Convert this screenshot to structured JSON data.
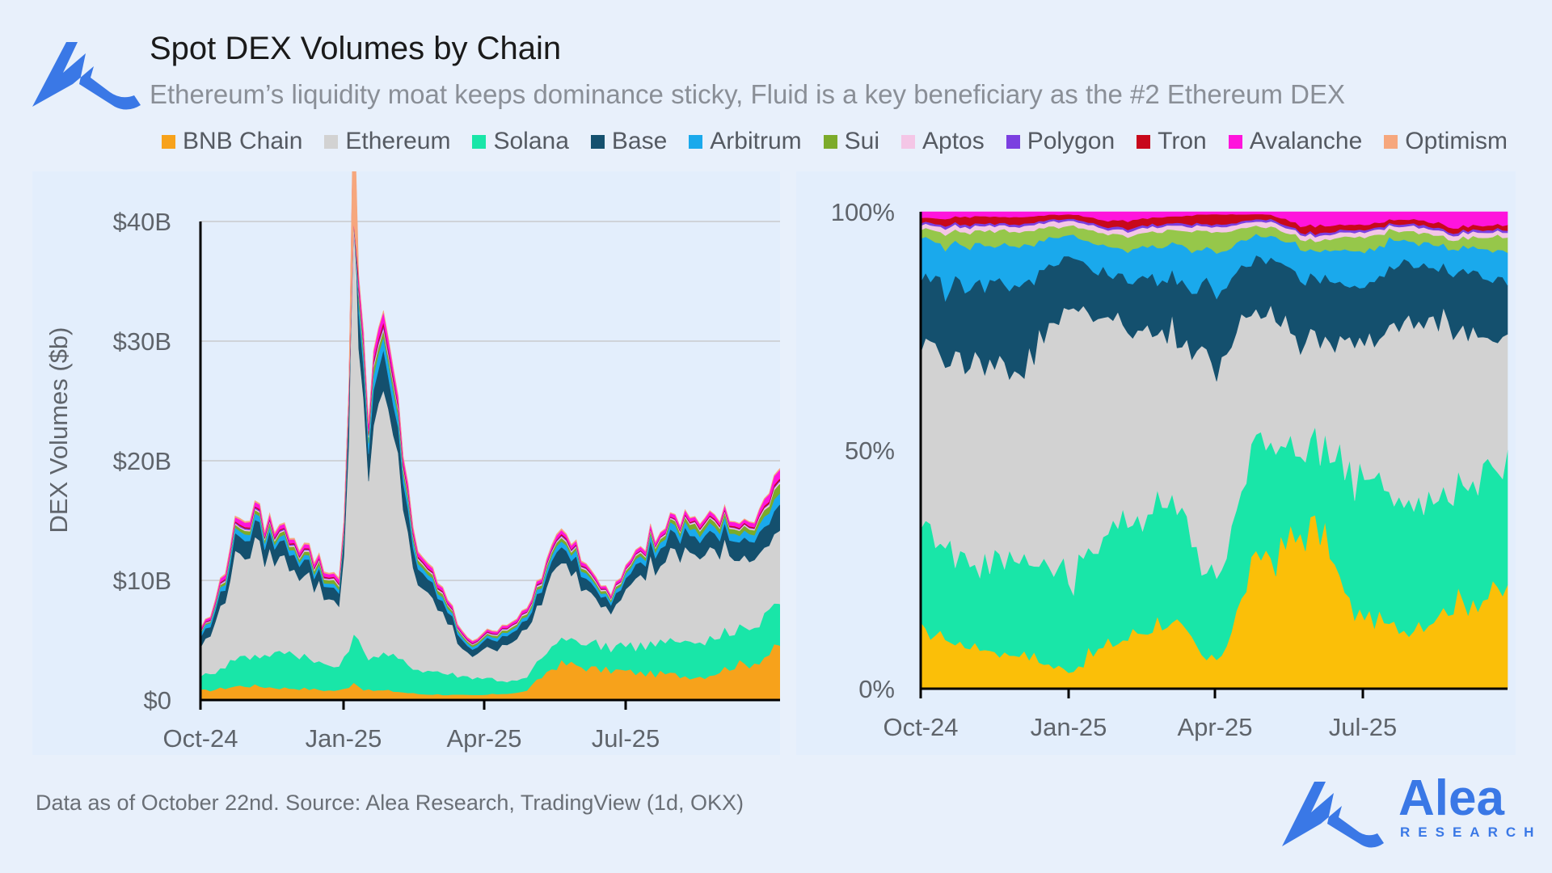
{
  "header": {
    "title": "Spot DEX Volumes by Chain",
    "subtitle": "Ethereum’s liquidity moat keeps dominance sticky, Fluid is a key beneficiary as the #2 Ethereum DEX"
  },
  "footer": {
    "source": "Data as of October 22nd. Source: Alea Research, TradingView (1d, OKX)",
    "brand_name": "Alea",
    "brand_sub": "RESEARCH"
  },
  "colors": {
    "background": "#e8f0fb",
    "brand": "#3a78e6"
  },
  "chart_data": [
    {
      "type": "area",
      "stacked": true,
      "ylabel": "DEX Volumes ($b)",
      "ylim": [
        0,
        40
      ],
      "yticks": [
        "$0",
        "$10B",
        "$20B",
        "$30B",
        "$40B"
      ],
      "xticks": [
        "Oct-24",
        "Jan-25",
        "Apr-25",
        "Jul-25"
      ],
      "grid": true,
      "legend": "top",
      "x": [
        "Oct-24",
        "Nov-24",
        "Dec-24",
        "Jan-25",
        "Jan-25b",
        "Feb-25",
        "Mar-25",
        "Apr-25",
        "May-25",
        "Jun-25",
        "Jul-25",
        "Aug-25",
        "Sep-25",
        "Oct-25"
      ],
      "series": [
        {
          "name": "BNB Chain",
          "color": "#f7a21b",
          "values": [
            0.8,
            1.2,
            1.0,
            0.8,
            0.8,
            0.5,
            0.4,
            0.6,
            3.0,
            2.5,
            2.2,
            2.0,
            3.0,
            4.5
          ]
        },
        {
          "name": "Solana",
          "color": "#19e6a8",
          "values": [
            1.2,
            2.5,
            3.0,
            2.0,
            3.0,
            2.0,
            1.5,
            1.0,
            2.0,
            2.0,
            2.5,
            3.0,
            3.0,
            4.0
          ]
        },
        {
          "name": "Ethereum",
          "color": "#d2d2d2",
          "values": [
            2.5,
            9.0,
            7.5,
            5.5,
            20.0,
            6.0,
            2.0,
            3.5,
            6.0,
            3.5,
            6.5,
            7.5,
            6.0,
            6.0
          ]
        },
        {
          "name": "Base",
          "color": "#14506e",
          "values": [
            0.8,
            1.5,
            1.3,
            1.0,
            3.0,
            1.2,
            0.6,
            0.8,
            1.2,
            0.8,
            1.3,
            1.5,
            1.5,
            2.0
          ]
        },
        {
          "name": "Arbitrum",
          "color": "#1aa9ec",
          "values": [
            0.3,
            0.5,
            0.4,
            0.3,
            1.2,
            0.4,
            0.2,
            0.3,
            0.5,
            0.3,
            0.5,
            0.6,
            0.6,
            1.0
          ]
        },
        {
          "name": "Sui",
          "color": "#7cab2a",
          "values": [
            0.1,
            0.3,
            0.3,
            0.3,
            0.6,
            0.3,
            0.15,
            0.2,
            0.3,
            0.2,
            0.3,
            0.4,
            0.4,
            0.8
          ]
        },
        {
          "name": "Aptos",
          "color": "#f4c6e6",
          "values": [
            0.05,
            0.1,
            0.1,
            0.1,
            0.2,
            0.1,
            0.05,
            0.1,
            0.1,
            0.1,
            0.1,
            0.1,
            0.1,
            0.2
          ]
        },
        {
          "name": "Polygon",
          "color": "#7b3fe0",
          "values": [
            0.05,
            0.1,
            0.1,
            0.05,
            0.2,
            0.05,
            0.05,
            0.05,
            0.1,
            0.05,
            0.05,
            0.05,
            0.05,
            0.1
          ]
        },
        {
          "name": "Tron",
          "color": "#c8081b",
          "values": [
            0.05,
            0.1,
            0.1,
            0.1,
            0.3,
            0.1,
            0.05,
            0.05,
            0.1,
            0.05,
            0.05,
            0.1,
            0.1,
            0.2
          ]
        },
        {
          "name": "Avalanche",
          "color": "#ff14dc",
          "values": [
            0.2,
            0.4,
            0.3,
            0.3,
            0.8,
            0.3,
            0.15,
            0.2,
            0.3,
            0.2,
            0.3,
            0.3,
            0.3,
            0.8
          ]
        },
        {
          "name": "Optimism",
          "color": "#f6a77d",
          "values": [
            0.05,
            0.1,
            0.1,
            0.1,
            0.1,
            0.1,
            0.05,
            0.05,
            0.1,
            0.05,
            0.05,
            0.05,
            0.05,
            0.1
          ]
        }
      ]
    },
    {
      "type": "area",
      "stacked": true,
      "normalized": true,
      "ylim": [
        0,
        100
      ],
      "yticks": [
        "0%",
        "50%",
        "100%"
      ],
      "xticks": [
        "Oct-24",
        "Jan-25",
        "Apr-25",
        "Jul-25"
      ],
      "grid": false,
      "x": [
        "Oct-24",
        "Nov-24",
        "Dec-24",
        "Jan-25",
        "Feb-25",
        "Mar-25",
        "Apr-25",
        "May-25",
        "Jun-25",
        "Jul-25",
        "Aug-25",
        "Sep-25",
        "Oct-25"
      ],
      "series": [
        {
          "name": "BNB Chain",
          "color": "#fbbf08",
          "values": [
            12,
            9,
            7,
            4,
            10,
            14,
            6,
            28,
            33,
            15,
            13,
            18,
            20
          ]
        },
        {
          "name": "Solana",
          "color": "#19e6a8",
          "values": [
            22,
            18,
            20,
            20,
            24,
            26,
            18,
            24,
            16,
            30,
            26,
            24,
            28
          ]
        },
        {
          "name": "Ethereum",
          "color": "#d2d2d2",
          "values": [
            38,
            42,
            40,
            56,
            42,
            34,
            46,
            26,
            24,
            28,
            38,
            34,
            26
          ]
        },
        {
          "name": "Base",
          "color": "#14506e",
          "values": [
            14,
            16,
            18,
            10,
            10,
            12,
            14,
            12,
            13,
            12,
            12,
            12,
            12
          ]
        },
        {
          "name": "Arbitrum",
          "color": "#1aa9ec",
          "values": [
            8,
            8,
            8,
            5,
            6,
            7,
            8,
            5,
            6,
            7,
            5,
            5,
            6
          ]
        },
        {
          "name": "Sui",
          "color": "#96c74a",
          "values": [
            2,
            3,
            3,
            2,
            3,
            3,
            4,
            2,
            2,
            3,
            2,
            2,
            3
          ]
        },
        {
          "name": "Aptos",
          "color": "#f4c6e6",
          "values": [
            1,
            1,
            1,
            1,
            1,
            1,
            1,
            1,
            1,
            1,
            1,
            1,
            1
          ]
        },
        {
          "name": "Polygon",
          "color": "#7b3fe0",
          "values": [
            0.5,
            0.5,
            0.5,
            0.5,
            0.5,
            0.5,
            0.5,
            0.5,
            0.5,
            0.5,
            0.5,
            0.5,
            0.5
          ]
        },
        {
          "name": "Tron",
          "color": "#c8081b",
          "values": [
            1,
            1.5,
            1.5,
            1,
            1.5,
            1.5,
            2,
            1,
            1.5,
            1,
            1,
            1,
            1
          ]
        },
        {
          "name": "Avalanche",
          "color": "#ff14dc",
          "values": [
            1.5,
            1,
            1,
            0.5,
            2,
            1,
            0.5,
            0.5,
            3,
            2.5,
            1.5,
            3,
            2.5
          ]
        }
      ]
    }
  ]
}
